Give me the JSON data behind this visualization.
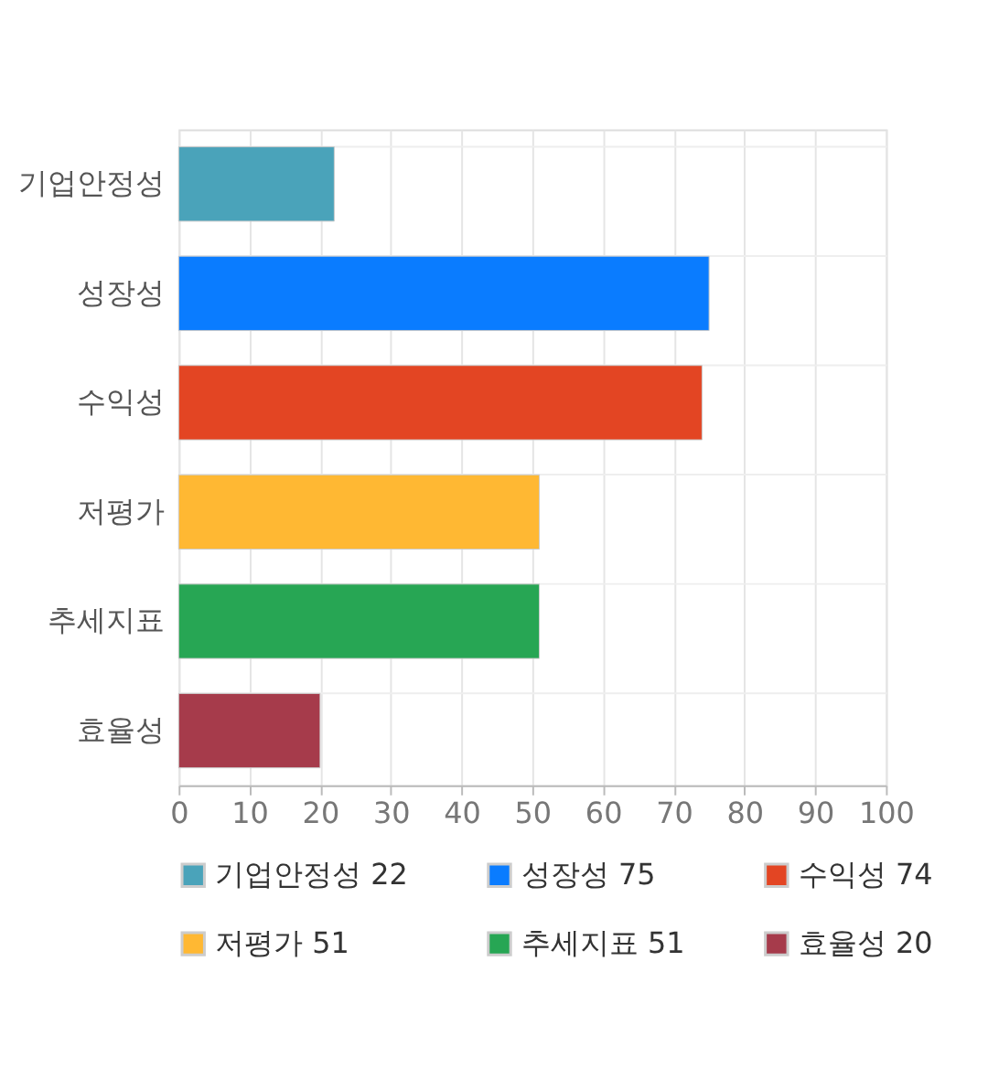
{
  "chart_data": {
    "type": "bar",
    "orientation": "horizontal",
    "categories": [
      "기업안정성",
      "성장성",
      "수익성",
      "저평가",
      "추세지표",
      "효율성"
    ],
    "series": [
      {
        "name": "기업안정성 22",
        "color": "#4aa3ba",
        "values": [
          22,
          null,
          null,
          null,
          null,
          null
        ]
      },
      {
        "name": "성장성 75",
        "color": "#0a7cff",
        "values": [
          null,
          75,
          null,
          null,
          null,
          null
        ]
      },
      {
        "name": "수익성 74",
        "color": "#e34523",
        "values": [
          null,
          null,
          74,
          null,
          null,
          null
        ]
      },
      {
        "name": "저평가 51",
        "color": "#ffb833",
        "values": [
          null,
          null,
          null,
          51,
          null,
          null
        ]
      },
      {
        "name": "추세지표 51",
        "color": "#27a654",
        "values": [
          null,
          null,
          null,
          null,
          51,
          null
        ]
      },
      {
        "name": "효율성 20",
        "color": "#a63b4b",
        "values": [
          null,
          null,
          null,
          null,
          null,
          20
        ]
      }
    ],
    "xlim": [
      0,
      100
    ],
    "xticks": [
      0,
      10,
      20,
      30,
      40,
      50,
      60,
      70,
      80,
      90,
      100
    ],
    "grid": true,
    "legend": "bottom"
  }
}
